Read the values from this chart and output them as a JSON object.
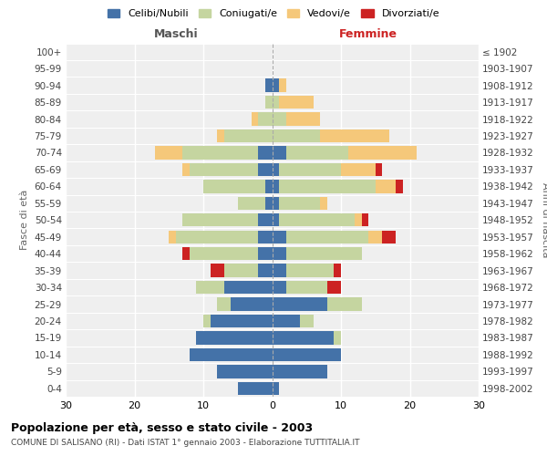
{
  "age_groups": [
    "0-4",
    "5-9",
    "10-14",
    "15-19",
    "20-24",
    "25-29",
    "30-34",
    "35-39",
    "40-44",
    "45-49",
    "50-54",
    "55-59",
    "60-64",
    "65-69",
    "70-74",
    "75-79",
    "80-84",
    "85-89",
    "90-94",
    "95-99",
    "100+"
  ],
  "birth_years": [
    "1998-2002",
    "1993-1997",
    "1988-1992",
    "1983-1987",
    "1978-1982",
    "1973-1977",
    "1968-1972",
    "1963-1967",
    "1958-1962",
    "1953-1957",
    "1948-1952",
    "1943-1947",
    "1938-1942",
    "1933-1937",
    "1928-1932",
    "1923-1927",
    "1918-1922",
    "1913-1917",
    "1908-1912",
    "1903-1907",
    "≤ 1902"
  ],
  "males": {
    "celibi": [
      5,
      8,
      12,
      11,
      9,
      6,
      7,
      2,
      2,
      2,
      2,
      1,
      1,
      2,
      2,
      0,
      0,
      0,
      1,
      0,
      0
    ],
    "coniugati": [
      0,
      0,
      0,
      0,
      1,
      2,
      4,
      5,
      10,
      12,
      11,
      4,
      9,
      10,
      11,
      7,
      2,
      1,
      0,
      0,
      0
    ],
    "vedovi": [
      0,
      0,
      0,
      0,
      0,
      0,
      0,
      0,
      0,
      1,
      0,
      0,
      0,
      1,
      4,
      1,
      1,
      0,
      0,
      0,
      0
    ],
    "divorziati": [
      0,
      0,
      0,
      0,
      0,
      0,
      0,
      2,
      1,
      0,
      0,
      0,
      0,
      0,
      0,
      0,
      0,
      0,
      0,
      0,
      0
    ]
  },
  "females": {
    "nubili": [
      1,
      8,
      10,
      9,
      4,
      8,
      2,
      2,
      2,
      2,
      1,
      1,
      1,
      1,
      2,
      0,
      0,
      0,
      1,
      0,
      0
    ],
    "coniugate": [
      0,
      0,
      0,
      1,
      2,
      5,
      6,
      7,
      11,
      12,
      11,
      6,
      14,
      9,
      9,
      7,
      2,
      1,
      0,
      0,
      0
    ],
    "vedove": [
      0,
      0,
      0,
      0,
      0,
      0,
      0,
      0,
      0,
      2,
      1,
      1,
      3,
      5,
      10,
      10,
      5,
      5,
      1,
      0,
      0
    ],
    "divorziate": [
      0,
      0,
      0,
      0,
      0,
      0,
      2,
      1,
      0,
      2,
      1,
      0,
      1,
      1,
      0,
      0,
      0,
      0,
      0,
      0,
      0
    ]
  },
  "color_celibi": "#4472a8",
  "color_coniugati": "#c5d5a0",
  "color_vedovi": "#f5c87a",
  "color_divorziati": "#cc2222",
  "title": "Popolazione per età, sesso e stato civile - 2003",
  "subtitle": "COMUNE DI SALISANO (RI) - Dati ISTAT 1° gennaio 2003 - Elaborazione TUTTITALIA.IT",
  "xlabel_left": "Maschi",
  "xlabel_right": "Femmine",
  "ylabel_left": "Fasce di età",
  "ylabel_right": "Anni di nascita",
  "xlim": 30,
  "background_color": "#ffffff",
  "legend_labels": [
    "Celibi/Nubili",
    "Coniugati/e",
    "Vedovi/e",
    "Divorziati/e"
  ]
}
